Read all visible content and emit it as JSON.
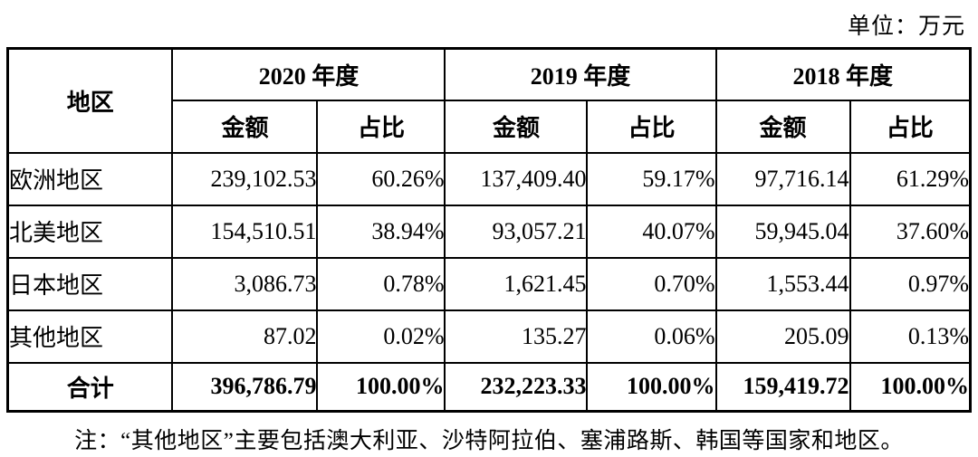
{
  "unit_label": "单位：万元",
  "table": {
    "region_header": "地区",
    "amount_header": "金额",
    "ratio_header": "占比",
    "year_groups": [
      {
        "label": "2020 年度"
      },
      {
        "label": "2019 年度"
      },
      {
        "label": "2018 年度"
      }
    ],
    "rows": [
      {
        "region": "欧洲地区",
        "amount_2020": "239,102.53",
        "pct_2020": "60.26%",
        "amount_2019": "137,409.40",
        "pct_2019": "59.17%",
        "amount_2018": "97,716.14",
        "pct_2018": "61.29%"
      },
      {
        "region": "北美地区",
        "amount_2020": "154,510.51",
        "pct_2020": "38.94%",
        "amount_2019": "93,057.21",
        "pct_2019": "40.07%",
        "amount_2018": "59,945.04",
        "pct_2018": "37.60%"
      },
      {
        "region": "日本地区",
        "amount_2020": "3,086.73",
        "pct_2020": "0.78%",
        "amount_2019": "1,621.45",
        "pct_2019": "0.70%",
        "amount_2018": "1,553.44",
        "pct_2018": "0.97%"
      },
      {
        "region": "其他地区",
        "amount_2020": "87.02",
        "pct_2020": "0.02%",
        "amount_2019": "135.27",
        "pct_2019": "0.06%",
        "amount_2018": "205.09",
        "pct_2018": "0.13%"
      }
    ],
    "total": {
      "region": "合计",
      "amount_2020": "396,786.79",
      "pct_2020": "100.00%",
      "amount_2019": "232,223.33",
      "pct_2019": "100.00%",
      "amount_2018": "159,419.72",
      "pct_2018": "100.00%"
    }
  },
  "note": "注：“其他地区”主要包括澳大利亚、沙特阿拉伯、塞浦路斯、韩国等国家和地区。"
}
